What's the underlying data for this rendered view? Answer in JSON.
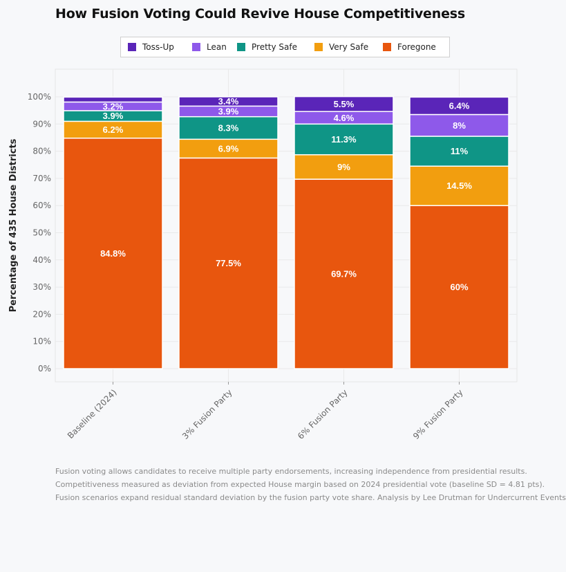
{
  "chart_data": {
    "type": "bar",
    "stacked": true,
    "title": "How Fusion Voting Could Revive House Competitiveness",
    "xlabel": "",
    "ylabel": "Percentage of 435 House Districts",
    "ylim": [
      0,
      100
    ],
    "yticks": [
      "0%",
      "10%",
      "20%",
      "30%",
      "40%",
      "50%",
      "60%",
      "70%",
      "80%",
      "90%",
      "100%"
    ],
    "grid": true,
    "legend_position": "top",
    "categories": [
      "Baseline (2024)",
      "3% Fusion Party",
      "6% Fusion Party",
      "9% Fusion Party"
    ],
    "series": [
      {
        "name": "Foregone",
        "color": "#e8560e",
        "values": [
          84.8,
          77.5,
          69.7,
          60
        ],
        "labels": [
          "84.8%",
          "77.5%",
          "69.7%",
          "60%"
        ]
      },
      {
        "name": "Very Safe",
        "color": "#f29e0f",
        "values": [
          6.2,
          6.9,
          9,
          14.5
        ],
        "labels": [
          "6.2%",
          "6.9%",
          "9%",
          "14.5%"
        ]
      },
      {
        "name": "Pretty Safe",
        "color": "#0f9586",
        "values": [
          3.9,
          8.3,
          11.3,
          11
        ],
        "labels": [
          "3.9%",
          "8.3%",
          "11.3%",
          "11%"
        ]
      },
      {
        "name": "Lean",
        "color": "#8e59ea",
        "values": [
          3.2,
          3.9,
          4.6,
          8
        ],
        "labels": [
          "3.2%",
          "3.9%",
          "4.6%",
          "8%"
        ]
      },
      {
        "name": "Toss-Up",
        "color": "#5a25b8",
        "values": [
          1.8,
          3.4,
          5.5,
          6.4
        ],
        "labels": [
          "",
          "3.4%",
          "5.5%",
          "6.4%"
        ]
      }
    ]
  },
  "legend_order": [
    "Toss-Up",
    "Lean",
    "Pretty Safe",
    "Very Safe",
    "Foregone"
  ],
  "footnote": {
    "line1": "Fusion voting allows candidates to receive multiple party endorsements, increasing independence from presidential results.",
    "line2": "Competitiveness measured as deviation from expected House margin based on 2024 presidential vote (baseline SD = 4.81 pts).",
    "line3": "Fusion scenarios expand residual standard deviation by the fusion party vote share. Analysis by Lee Drutman for Undercurrent Events"
  }
}
